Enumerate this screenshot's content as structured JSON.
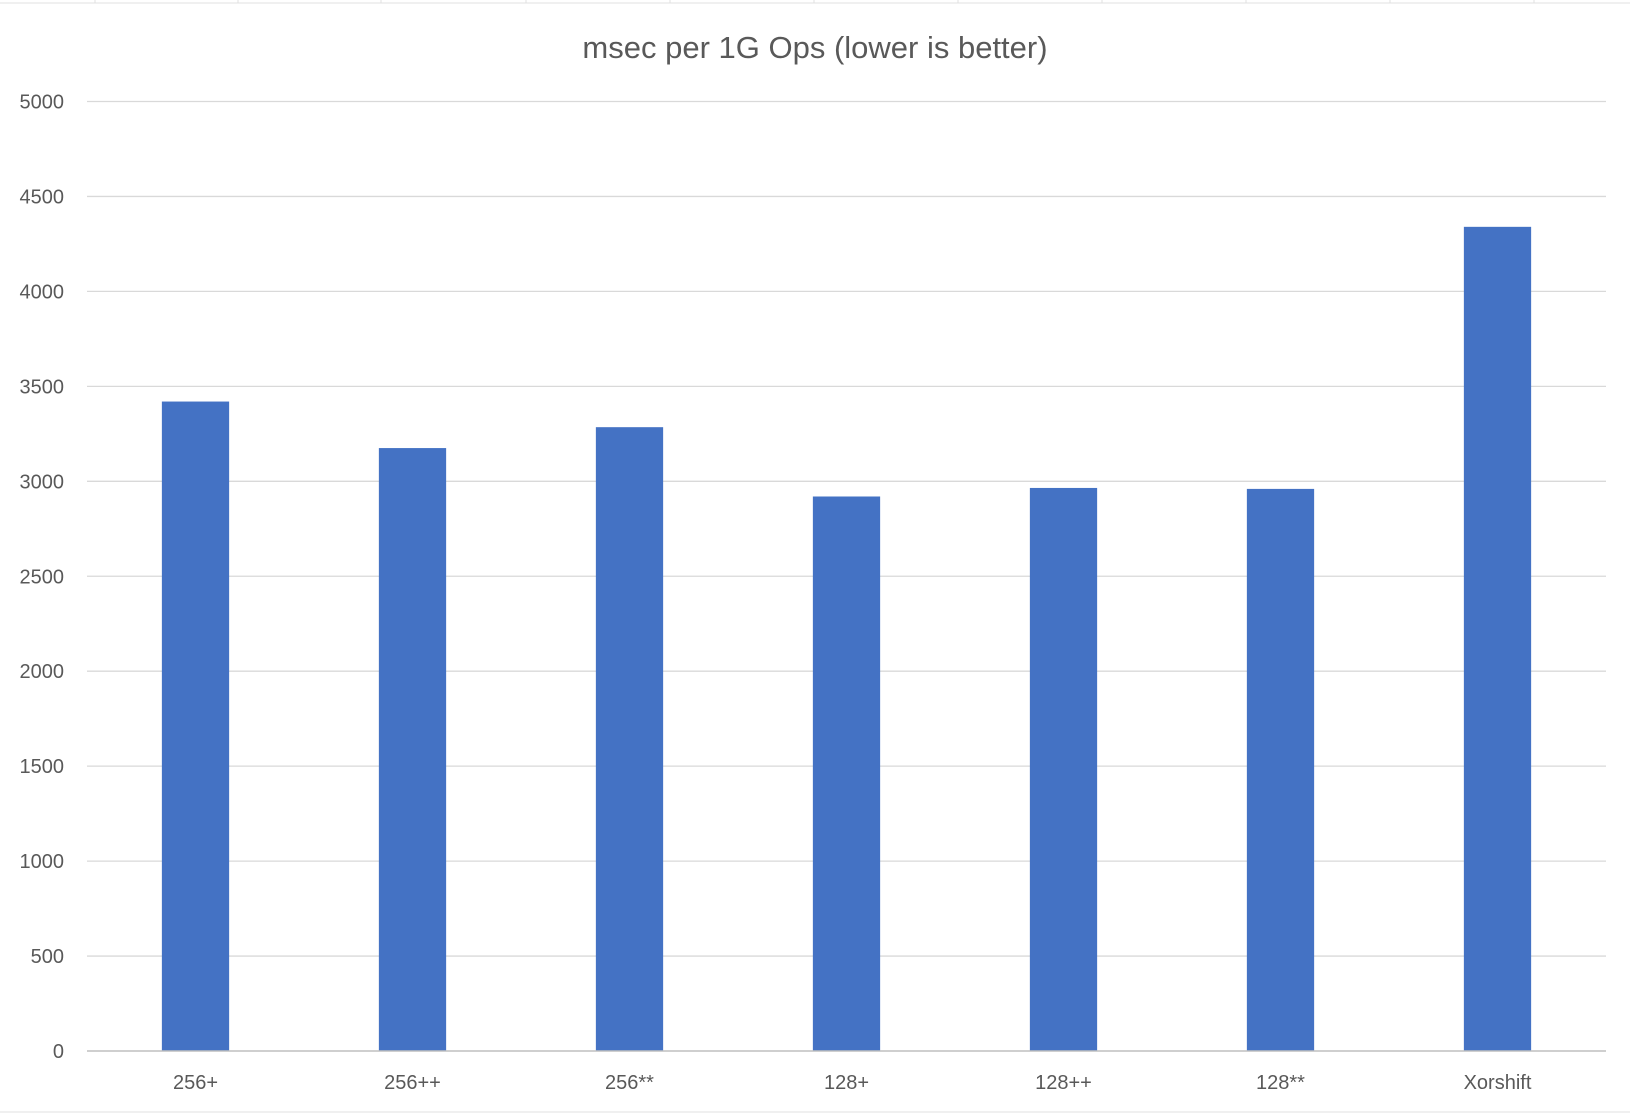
{
  "chart_data": {
    "type": "bar",
    "title": "msec per 1G Ops (lower is better)",
    "xlabel": "",
    "ylabel": "",
    "categories": [
      "256+",
      "256++",
      "256**",
      "128+",
      "128++",
      "128**",
      "Xorshift"
    ],
    "series": [
      {
        "values": [
          3420,
          3175,
          3285,
          2920,
          2965,
          2960,
          4340
        ],
        "color": "#4472c4"
      }
    ],
    "ylim": [
      0,
      5000
    ],
    "yticks": [
      0,
      500,
      1000,
      1500,
      2000,
      2500,
      3000,
      3500,
      4000,
      4500,
      5000
    ],
    "grid": true,
    "legend": "none"
  }
}
